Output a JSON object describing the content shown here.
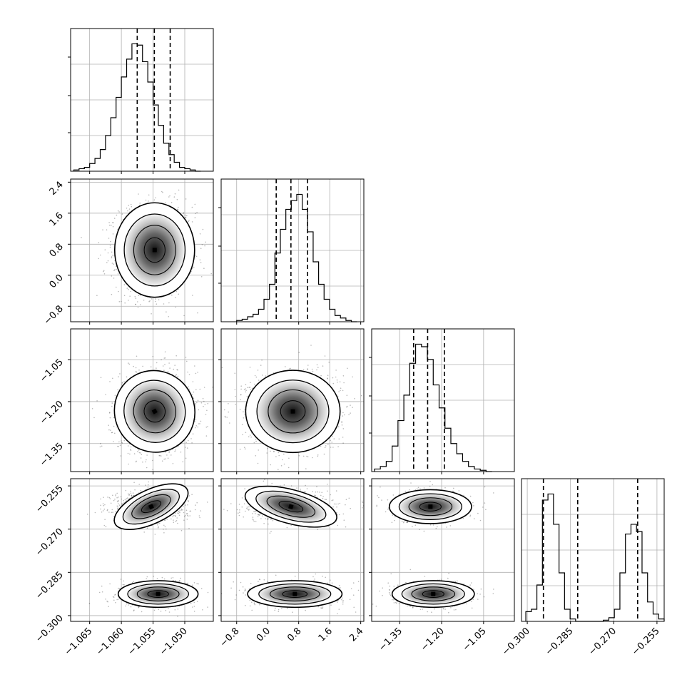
{
  "chart_data": {
    "type": "corner",
    "parameters": [
      {
        "range": [
          -1.068,
          -1.0455
        ],
        "ticks": [
          "-1.065",
          "-1.060",
          "-1.055",
          "-1.050"
        ],
        "quantiles": [
          -1.0575,
          -1.0548,
          -1.0523
        ],
        "hist_range": [
          -1.0675,
          -1.0475
        ],
        "hist": [
          1,
          2,
          3,
          6,
          10,
          17,
          28,
          42,
          58,
          74,
          88,
          100,
          99,
          86,
          70,
          52,
          36,
          22,
          13,
          7,
          3,
          2,
          1,
          0
        ]
      },
      {
        "range": [
          -1.2,
          2.48
        ],
        "ticks": [
          "-0.8",
          "0.0",
          "0.8",
          "1.6",
          "2.4"
        ],
        "quantiles": [
          0.22,
          0.6,
          1.03
        ],
        "hist_range": [
          -0.8,
          2.3
        ],
        "hist": [
          1,
          2,
          4,
          6,
          10,
          18,
          30,
          55,
          74,
          90,
          97,
          102,
          90,
          72,
          48,
          30,
          18,
          10,
          5,
          3,
          1,
          0
        ]
      },
      {
        "range": [
          -1.45,
          -0.94
        ],
        "ticks": [
          "-1.35",
          "-1.20",
          "-1.05"
        ],
        "quantiles": [
          -1.3,
          -1.25,
          -1.19
        ],
        "hist_range": [
          -1.44,
          -1.02
        ],
        "hist": [
          2,
          4,
          8,
          20,
          40,
          60,
          85,
          100,
          98,
          88,
          68,
          50,
          34,
          22,
          14,
          8,
          4,
          2,
          1,
          0
        ]
      },
      {
        "range": [
          -0.302,
          -0.2525
        ],
        "ticks": [
          "-0.300",
          "-0.285",
          "-0.270",
          "-0.255"
        ],
        "quantiles": [
          -0.2944,
          -0.2825,
          -0.2617
        ],
        "hist_range": [
          -0.3005,
          -0.2525
        ],
        "hist": [
          8,
          10,
          30,
          100,
          105,
          80,
          40,
          10,
          2,
          0,
          0,
          0,
          0,
          0,
          1,
          3,
          10,
          40,
          72,
          80,
          74,
          40,
          16,
          6,
          2
        ]
      }
    ],
    "lower_ticks": [
      null,
      [
        "-0.8",
        "0.0",
        "0.8",
        "1.6",
        "2.4"
      ],
      [
        "-1.35",
        "-1.20",
        "-1.05"
      ],
      [
        "-0.300",
        "-0.285",
        "-0.270",
        "-0.255"
      ]
    ],
    "bottom_ticks": [
      [
        "-1.065",
        "-1.060",
        "-1.055",
        "-1.050"
      ],
      [
        "-0.8",
        "0.0",
        "0.8",
        "1.6",
        "2.4"
      ],
      [
        "-1.35",
        "-1.20",
        "-1.05"
      ],
      [
        "-0.300",
        "-0.285",
        "-0.270",
        "-0.255"
      ]
    ],
    "modes": [
      {
        "means": [
          -1.0553,
          0.6,
          -1.24
        ],
        "sds": [
          0.003,
          0.58,
          0.07
        ],
        "p3": -0.2622,
        "p3sd": 0.0028,
        "weight": 0.5
      },
      {
        "means": [
          -1.0542,
          0.7,
          -1.23
        ],
        "sds": [
          0.003,
          0.58,
          0.07
        ],
        "p3": -0.2925,
        "p3sd": 0.0022,
        "weight": 0.5
      }
    ],
    "grid": true
  }
}
